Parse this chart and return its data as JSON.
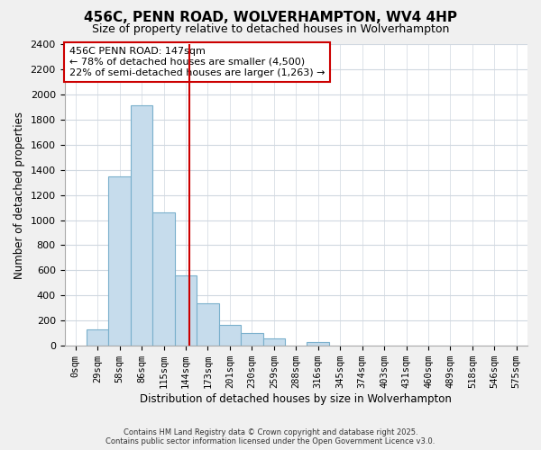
{
  "title_line1": "456C, PENN ROAD, WOLVERHAMPTON, WV4 4HP",
  "title_line2": "Size of property relative to detached houses in Wolverhampton",
  "xlabel": "Distribution of detached houses by size in Wolverhampton",
  "ylabel": "Number of detached properties",
  "bin_labels": [
    "0sqm",
    "29sqm",
    "58sqm",
    "86sqm",
    "115sqm",
    "144sqm",
    "173sqm",
    "201sqm",
    "230sqm",
    "259sqm",
    "288sqm",
    "316sqm",
    "345sqm",
    "374sqm",
    "403sqm",
    "431sqm",
    "460sqm",
    "489sqm",
    "518sqm",
    "546sqm",
    "575sqm"
  ],
  "bar_heights": [
    0,
    130,
    1350,
    1910,
    1060,
    560,
    340,
    165,
    105,
    60,
    0,
    30,
    0,
    0,
    0,
    0,
    0,
    0,
    0,
    0,
    0
  ],
  "bar_color": "#c6dcec",
  "bar_edge_color": "#7ab0cc",
  "property_line_x": 5.17,
  "property_line_color": "#cc0000",
  "annotation_title": "456C PENN ROAD: 147sqm",
  "annotation_line1": "← 78% of detached houses are smaller (4,500)",
  "annotation_line2": "22% of semi-detached houses are larger (1,263) →",
  "ylim": [
    0,
    2400
  ],
  "yticks": [
    0,
    200,
    400,
    600,
    800,
    1000,
    1200,
    1400,
    1600,
    1800,
    2000,
    2200,
    2400
  ],
  "footnote1": "Contains HM Land Registry data © Crown copyright and database right 2025.",
  "footnote2": "Contains public sector information licensed under the Open Government Licence v3.0.",
  "bg_color": "#f0f0f0",
  "plot_bg_color": "#ffffff",
  "grid_color": "#d0d8e0"
}
